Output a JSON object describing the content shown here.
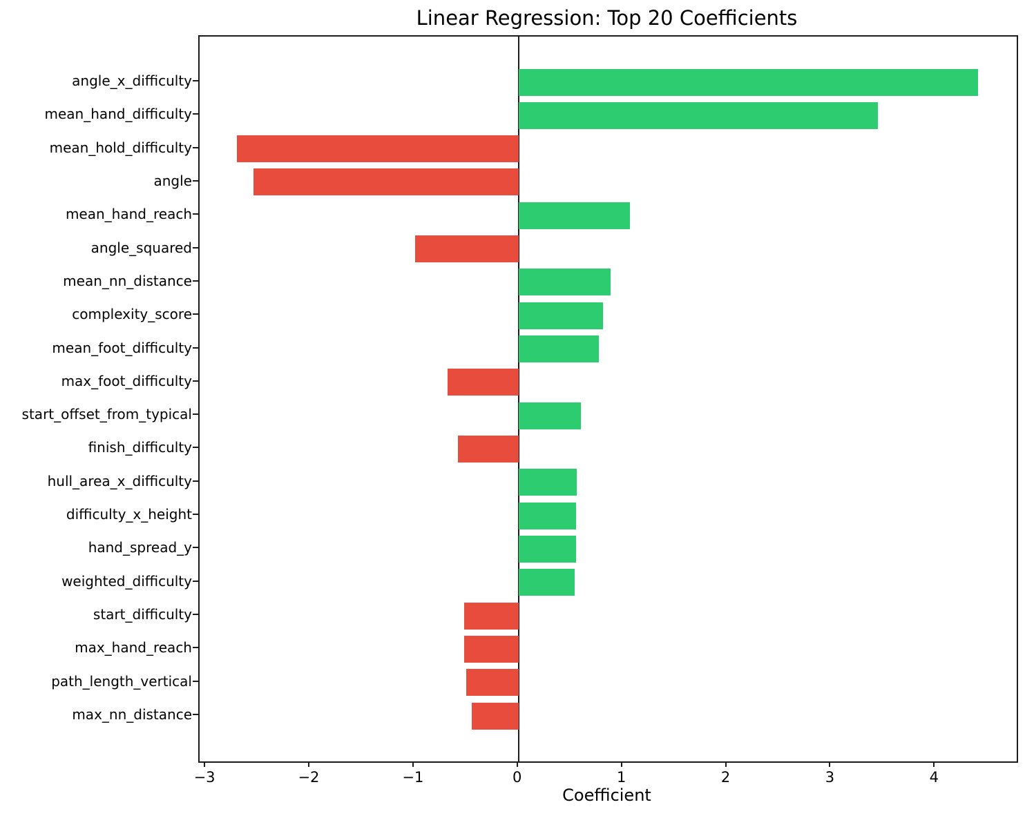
{
  "chart_data": {
    "type": "bar",
    "orientation": "horizontal",
    "title": "Linear Regression: Top 20 Coefficients",
    "xlabel": "Coefficient",
    "ylabel": "",
    "categories": [
      "angle_x_difficulty",
      "mean_hand_difficulty",
      "mean_hold_difficulty",
      "angle",
      "mean_hand_reach",
      "angle_squared",
      "mean_nn_distance",
      "complexity_score",
      "mean_foot_difficulty",
      "max_foot_difficulty",
      "start_offset_from_typical",
      "finish_difficulty",
      "hull_area_x_difficulty",
      "difficulty_x_height",
      "hand_spread_y",
      "weighted_difficulty",
      "start_difficulty",
      "max_hand_reach",
      "path_length_vertical",
      "max_nn_distance"
    ],
    "values": [
      4.41,
      3.45,
      -2.7,
      -2.54,
      1.07,
      -0.99,
      0.88,
      0.81,
      0.77,
      -0.68,
      0.6,
      -0.58,
      0.56,
      0.55,
      0.55,
      0.54,
      -0.52,
      -0.52,
      -0.5,
      -0.45
    ],
    "positive_color": "#2ecc71",
    "negative_color": "#e74c3c",
    "xlim": [
      -3.06,
      4.78
    ],
    "x_ticks": [
      -3,
      -2,
      -1,
      0,
      1,
      2,
      3,
      4
    ],
    "x_tick_labels": [
      "−3",
      "−2",
      "−1",
      "0",
      "1",
      "2",
      "3",
      "4"
    ],
    "zero_line": true,
    "grid": false,
    "legend_position": "none"
  }
}
